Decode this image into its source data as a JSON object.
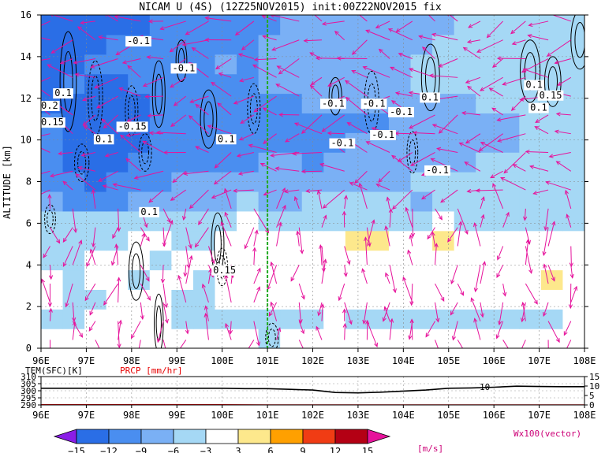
{
  "chart_data": [
    {
      "type": "heatmap",
      "title": "NICAM U (4S) (12Z25NOV2015) init:00Z22NOV2015 fix",
      "xlabel": "",
      "ylabel": "ALTITUDE [km]",
      "x_ticks": [
        "96E",
        "97E",
        "98E",
        "99E",
        "100E",
        "101E",
        "102E",
        "103E",
        "104E",
        "105E",
        "106E",
        "107E",
        "108E"
      ],
      "xlim": [
        96,
        108
      ],
      "y_ticks": [
        0,
        2,
        4,
        6,
        8,
        10,
        12,
        14,
        16
      ],
      "ylim": [
        0,
        16
      ],
      "grid": true,
      "reference_line_lon": 101,
      "contour_labels": [
        {
          "text": "-0.1",
          "lon": 97.9,
          "alt": 14.6
        },
        {
          "text": "-0.1",
          "lon": 98.9,
          "alt": 13.3
        },
        {
          "text": "0.1",
          "lon": 96.3,
          "alt": 12.1
        },
        {
          "text": "0.2",
          "lon": 96.0,
          "alt": 11.5
        },
        {
          "text": "0.15",
          "lon": 96.0,
          "alt": 10.7
        },
        {
          "text": "-0.15",
          "lon": 97.7,
          "alt": 10.5
        },
        {
          "text": "0.1",
          "lon": 97.2,
          "alt": 9.9
        },
        {
          "text": "0.1",
          "lon": 99.9,
          "alt": 9.9
        },
        {
          "text": "-0.1",
          "lon": 102.2,
          "alt": 11.6
        },
        {
          "text": "-0.1",
          "lon": 103.1,
          "alt": 11.6
        },
        {
          "text": "-0.1",
          "lon": 103.7,
          "alt": 11.2
        },
        {
          "text": "0.1",
          "lon": 104.4,
          "alt": 11.9
        },
        {
          "text": "0.1",
          "lon": 106.7,
          "alt": 12.5
        },
        {
          "text": "0.15",
          "lon": 107.0,
          "alt": 12.0
        },
        {
          "text": "0.1",
          "lon": 106.8,
          "alt": 11.4
        },
        {
          "text": "-0.1",
          "lon": 102.4,
          "alt": 9.7
        },
        {
          "text": "-0.1",
          "lon": 103.3,
          "alt": 10.1
        },
        {
          "text": "-0.1",
          "lon": 104.5,
          "alt": 8.4
        },
        {
          "text": "0.1",
          "lon": 98.2,
          "alt": 6.4
        },
        {
          "text": "0.15",
          "lon": 99.8,
          "alt": 3.6
        }
      ],
      "wind_speed_bands_ms": [
        -15,
        -12,
        -9,
        -6,
        -3,
        3,
        6,
        9,
        12,
        15
      ],
      "u_field_m_s": [
        [
          -0.5,
          0.5,
          -1.2,
          -2.8,
          -3.0,
          0.6,
          1.1,
          2.0,
          1.1,
          -0.2,
          -3.5,
          -1.2,
          -0.6,
          -0.2,
          -0.8,
          -1.5,
          -2.0,
          -1.5,
          -1.8,
          -2.0,
          -1.6,
          -1.4,
          -1.1,
          -1.0,
          -0.8
        ],
        [
          -3.2,
          -4.1,
          -2.5,
          -2.1,
          -2.2,
          0.5,
          -3.5,
          -4.2,
          -4.7,
          -3.7,
          -4.6,
          -4.0,
          -3.4,
          -2.8,
          -3.1,
          -3.8,
          -4.5,
          -3.9,
          -3.8,
          -3.5,
          -3.2,
          -3.3,
          -3.6,
          -3.1,
          -2.6
        ],
        [
          -2.5,
          -4.0,
          -3.5,
          -2.6,
          -1.8,
          -2.5,
          -3.8,
          -4.5,
          -1.5,
          -2.1,
          -1.8,
          -1.2,
          -0.8,
          -0.5,
          -0.4,
          -0.6,
          -0.8,
          -1.0,
          -0.9,
          -0.7,
          -0.4,
          -0.3,
          -0.4,
          -0.3,
          -0.6
        ],
        [
          -2.8,
          -3.5,
          -1.5,
          -0.6,
          -3.2,
          -2.0,
          -1.5,
          -3.6,
          -1.2,
          -1.0,
          -0.5,
          -0.3,
          -0.6,
          -0.4,
          -0.2,
          0.6,
          0.4,
          1.2,
          -0.3,
          -0.5,
          -0.2,
          0.4,
          2.8,
          3.2,
          0.6
        ],
        [
          -3.6,
          -3.8,
          -1.2,
          -1.0,
          -1.4,
          -3.7,
          -1.6,
          -1.2,
          -0.8,
          -0.4,
          -0.3,
          -0.5,
          -0.3,
          -0.2,
          0.5,
          1.0,
          2.0,
          0.8,
          -0.4,
          -0.2,
          -0.5,
          -0.3,
          0.8,
          1.2,
          0.3
        ],
        [
          -4.2,
          -3.6,
          -3.1,
          -3.8,
          -2.6,
          -1.8,
          -3.5,
          -3.2,
          -2.1,
          -1.4,
          -0.8,
          -0.6,
          -0.4,
          0.4,
          3.5,
          3.2,
          0.6,
          0.5,
          3.6,
          0.8,
          -0.3,
          -0.4,
          -0.6,
          -0.8,
          -0.5
        ],
        [
          -4.6,
          -4.8,
          -4.0,
          -4.4,
          -4.6,
          -4.0,
          -3.8,
          -3.5,
          -3.2,
          -2.9,
          -3.4,
          -3.5,
          -3.6,
          -3.8,
          -3.4,
          -3.6,
          -3.8,
          -3.2,
          -3.0,
          -3.3,
          -3.6,
          -3.9,
          -3.6,
          -3.4,
          -3.1
        ],
        [
          -8.2,
          -9.5,
          -10.6,
          -9.8,
          -8.9,
          -7.6,
          -7.0,
          -6.5,
          -6.8,
          -6.0,
          -6.6,
          -6.2,
          -6.0,
          -5.5,
          -5.6,
          -5.2,
          -6.0,
          -6.3,
          -5.6,
          -4.5,
          -4.8,
          -5.2,
          -4.6,
          -4.2,
          -3.8
        ],
        [
          -9.8,
          -10.5,
          -12.6,
          -11.8,
          -10.4,
          -9.6,
          -8.8,
          -8.2,
          -8.6,
          -7.6,
          -7.8,
          -7.2,
          -7.0,
          -6.4,
          -6.8,
          -7.0,
          -6.4,
          -6.0,
          -5.5,
          -5.6,
          -5.0,
          -4.6,
          -4.4,
          -4.8,
          -4.2
        ],
        [
          -10.6,
          -12.4,
          -13.5,
          -12.2,
          -11.8,
          -10.6,
          -9.8,
          -9.4,
          -10.2,
          -9.6,
          -9.0,
          -8.8,
          -9.2,
          -8.6,
          -8.5,
          -8.8,
          -8.2,
          -7.6,
          -7.2,
          -6.8,
          -6.0,
          -5.4,
          -5.6,
          -5.2,
          -4.8
        ],
        [
          -11.2,
          -12.6,
          -14.2,
          -13.0,
          -12.4,
          -11.0,
          -10.5,
          -9.8,
          -10.4,
          -11.0,
          -10.2,
          -9.4,
          -9.8,
          -9.2,
          -9.0,
          -8.6,
          -8.2,
          -8.8,
          -7.6,
          -7.0,
          -6.4,
          -6.2,
          -5.8,
          -5.4,
          -5.0
        ],
        [
          -11.8,
          -12.9,
          -12.8,
          -13.6,
          -12.8,
          -11.8,
          -11.0,
          -10.6,
          -10.8,
          -10.2,
          -9.6,
          -9.8,
          -10.5,
          -9.4,
          -9.8,
          -9.2,
          -8.6,
          -8.8,
          -8.0,
          -7.2,
          -6.8,
          -6.4,
          -6.0,
          -5.6,
          -5.0
        ],
        [
          -12.6,
          -12.9,
          -13.8,
          -12.4,
          -12.2,
          -11.6,
          -10.8,
          -10.2,
          -10.6,
          -10.0,
          -9.2,
          -9.6,
          -9.0,
          -8.8,
          -8.2,
          -7.9,
          -7.4,
          -7.0,
          -6.8,
          -6.2,
          -5.8,
          -5.4,
          -5.2,
          -5.0,
          -4.4
        ],
        [
          -12.9,
          -11.8,
          -12.2,
          -12.6,
          -11.4,
          -10.6,
          -10.0,
          -9.8,
          -9.4,
          -9.8,
          -9.0,
          -8.6,
          -8.4,
          -8.0,
          -7.6,
          -7.0,
          -6.6,
          -6.0,
          -5.6,
          -5.2,
          -4.8,
          -4.5,
          -4.2,
          -4.0,
          -3.6
        ],
        [
          -13.6,
          -12.8,
          -12.0,
          -11.2,
          -10.6,
          -10.2,
          -9.6,
          -9.2,
          -9.0,
          -9.4,
          -8.8,
          -8.2,
          -7.6,
          -7.0,
          -6.4,
          -6.2,
          -6.6,
          -5.8,
          -5.4,
          -5.0,
          -4.6,
          -4.2,
          -4.0,
          -4.4,
          -3.8
        ],
        [
          -14.2,
          -13.4,
          -12.2,
          -11.6,
          -10.8,
          -10.6,
          -9.8,
          -9.4,
          -9.2,
          -9.6,
          -8.6,
          -8.0,
          -7.8,
          -7.2,
          -6.8,
          -6.6,
          -6.4,
          -6.2,
          -5.8,
          -5.4,
          -5.0,
          -4.6,
          -4.4,
          -4.2,
          -4.0
        ],
        [
          -14.8,
          -13.8,
          -13.6,
          -12.9,
          -12.2,
          -11.8,
          -10.6,
          -10.2,
          -9.8,
          -10.0,
          -9.4,
          -8.8,
          -8.2,
          -7.6,
          -7.2,
          -7.0,
          -6.8,
          -6.4,
          -6.2,
          -6.0,
          -5.6,
          -5.2,
          -4.8,
          -4.6,
          -4.4
        ]
      ],
      "legend": {
        "series": [
          {
            "label": "TEM(SFC)[K]",
            "color": "#000000"
          },
          {
            "label": "PRCP [mm/hr]",
            "color": "#e60000"
          }
        ]
      }
    },
    {
      "type": "line",
      "x_ticks": [
        "96E",
        "97E",
        "98E",
        "99E",
        "100E",
        "101E",
        "102E",
        "103E",
        "104E",
        "105E",
        "106E",
        "107E",
        "108E"
      ],
      "xlim": [
        96,
        108
      ],
      "left_axis": {
        "ticks": [
          290,
          295,
          300,
          305,
          310
        ],
        "ylim": [
          290,
          310
        ]
      },
      "right_axis": {
        "ticks": [
          0,
          5,
          10,
          15
        ],
        "ylim": [
          0,
          15
        ]
      },
      "series": [
        {
          "name": "TEM(SFC)[K]",
          "x": [
            96,
            97,
            98,
            99,
            100,
            100.5,
            101,
            101.5,
            102,
            102.5,
            103,
            103.5,
            104,
            104.5,
            105,
            105.5,
            106,
            106.5,
            107,
            107.5,
            108
          ],
          "values": [
            301.8,
            301.8,
            301.8,
            301.8,
            301.8,
            301.5,
            301.5,
            301.0,
            300.5,
            298.8,
            298.5,
            299.0,
            299.8,
            300.5,
            301.8,
            302.0,
            302.5,
            303.2,
            303.0,
            302.9,
            302.9
          ]
        },
        {
          "name": "PRCP [mm/hr]",
          "x": [
            96,
            97,
            98,
            99,
            100,
            101,
            102,
            103,
            104,
            105,
            106,
            107,
            108
          ],
          "values": [
            0.15,
            0.15,
            0.2,
            0.2,
            0.15,
            0.1,
            0.1,
            0.1,
            0.1,
            0.1,
            0.1,
            0.1,
            0.1
          ]
        }
      ],
      "annotations": [
        {
          "text": "10",
          "lon": 105.8,
          "value_right_axis": 10
        }
      ]
    }
  ],
  "colorbar": {
    "boundaries": [
      "−15",
      "−12",
      "−9",
      "−6",
      "−3",
      "3",
      "6",
      "9",
      "12",
      "15"
    ],
    "colors": [
      "#8a1ee6",
      "#2a6ee6",
      "#4a8ef0",
      "#7ab0f5",
      "#a5d8f5",
      "#ffffff",
      "#fde88c",
      "#ffa000",
      "#f03c14",
      "#b40014",
      "#e6139b"
    ],
    "unit": "[m/s]"
  },
  "vector_label": "Wx100(vector)"
}
